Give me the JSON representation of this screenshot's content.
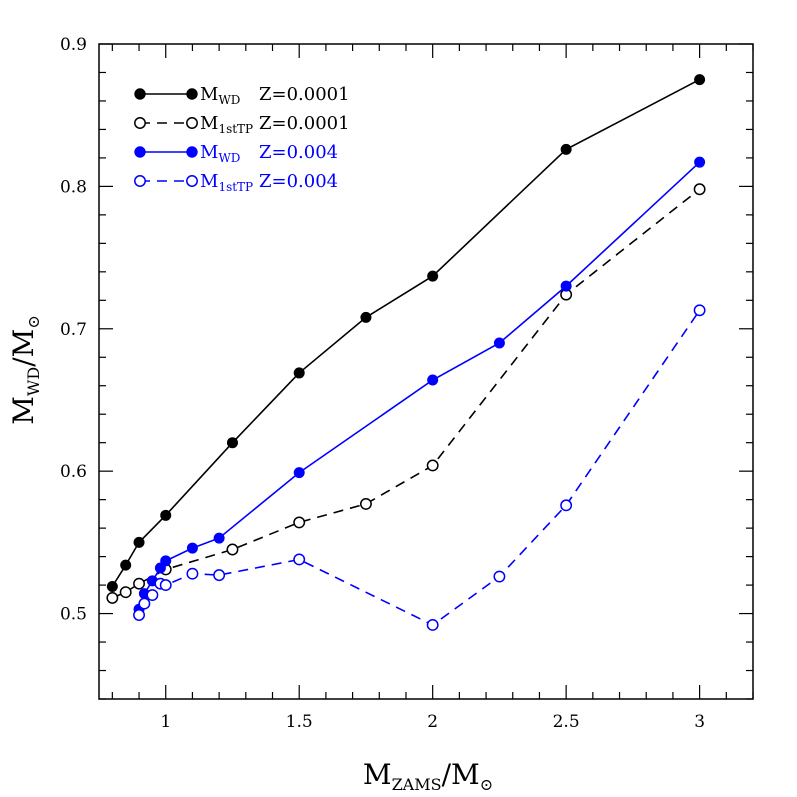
{
  "chart_data": {
    "type": "line",
    "xlabel": {
      "main": "M",
      "sub": "ZAMS",
      "suffix": "/M",
      "sun": "⊙"
    },
    "ylabel": {
      "main": "M",
      "sub": "WD",
      "suffix": "/M",
      "sun": "⊙"
    },
    "xlim": [
      0.75,
      3.2
    ],
    "ylim": [
      0.44,
      0.9
    ],
    "x_ticks": [
      1,
      1.5,
      2,
      2.5,
      3
    ],
    "x_tick_labels": [
      "1",
      "1.5",
      "2",
      "2.5",
      "3"
    ],
    "y_ticks": [
      0.5,
      0.6,
      0.7,
      0.8,
      0.9
    ],
    "y_tick_labels": [
      "0.5",
      "0.6",
      "0.7",
      "0.8",
      "0.9"
    ],
    "grid": false,
    "legend_position": "top-left",
    "series": [
      {
        "label_main": "M",
        "label_sub": "WD",
        "label_z": "Z=0.0001",
        "color": "#000000",
        "marker": "filled-circle",
        "line": "solid",
        "x": [
          0.8,
          0.85,
          0.9,
          1.0,
          1.25,
          1.5,
          1.75,
          2.0,
          2.5,
          3.0
        ],
        "y": [
          0.519,
          0.534,
          0.55,
          0.569,
          0.62,
          0.669,
          0.708,
          0.737,
          0.826,
          0.875
        ]
      },
      {
        "label_main": "M",
        "label_sub": "1stTP",
        "label_z": "Z=0.0001",
        "color": "#000000",
        "marker": "open-circle",
        "line": "dashed",
        "x": [
          0.8,
          0.85,
          0.9,
          1.0,
          1.25,
          1.5,
          1.75,
          2.0,
          2.5,
          3.0
        ],
        "y": [
          0.511,
          0.515,
          0.521,
          0.531,
          0.545,
          0.564,
          0.577,
          0.604,
          0.724,
          0.798
        ]
      },
      {
        "label_main": "M",
        "label_sub": "WD",
        "label_z": "Z=0.004",
        "color": "#0000ff",
        "marker": "filled-circle",
        "line": "solid",
        "x": [
          0.9,
          0.92,
          0.95,
          0.98,
          1.0,
          1.1,
          1.2,
          1.5,
          2.0,
          2.25,
          2.5,
          3.0
        ],
        "y": [
          0.503,
          0.514,
          0.523,
          0.532,
          0.537,
          0.546,
          0.553,
          0.599,
          0.664,
          0.69,
          0.73,
          0.817
        ]
      },
      {
        "label_main": "M",
        "label_sub": "1stTP",
        "label_z": "Z=0.004",
        "color": "#0000ff",
        "marker": "open-circle",
        "line": "dashed",
        "x": [
          0.9,
          0.92,
          0.95,
          0.98,
          1.0,
          1.1,
          1.2,
          1.5,
          2.0,
          2.25,
          2.5,
          3.0
        ],
        "y": [
          0.499,
          0.507,
          0.513,
          0.521,
          0.52,
          0.528,
          0.527,
          0.538,
          0.492,
          0.526,
          0.576,
          0.713
        ]
      }
    ]
  }
}
